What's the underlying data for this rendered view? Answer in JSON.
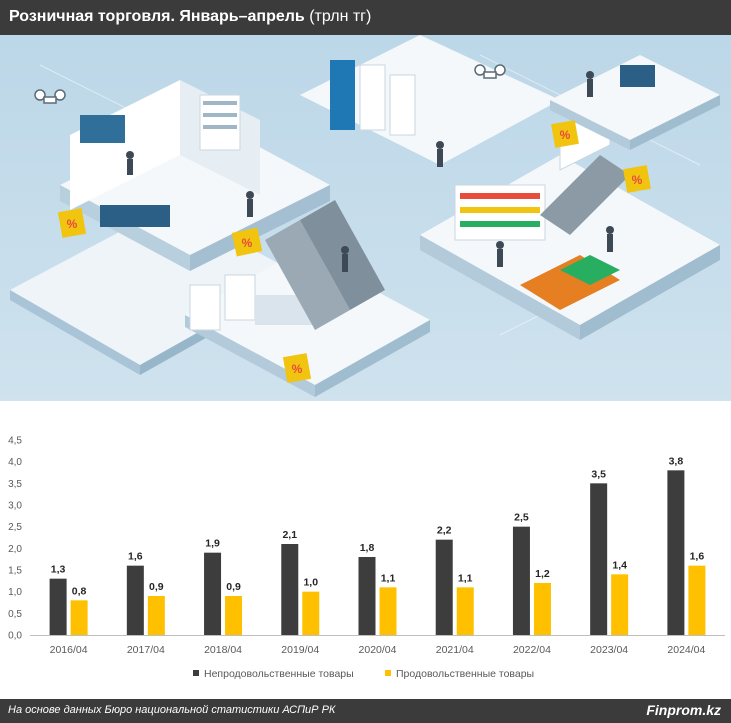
{
  "header": {
    "title_bold": "Розничная торговля. Январь–апрель",
    "title_unit": "(трлн тг)"
  },
  "illustration": {
    "description_icon": "shopping-mall-isometric-illustration"
  },
  "chart_data": {
    "type": "bar",
    "categories": [
      "2016/04",
      "2017/04",
      "2018/04",
      "2019/04",
      "2020/04",
      "2021/04",
      "2022/04",
      "2023/04",
      "2024/04"
    ],
    "series": [
      {
        "name": "Непродовольственные товары",
        "color": "#3d3d3d",
        "values": [
          1.3,
          1.6,
          1.9,
          2.1,
          1.8,
          2.2,
          2.5,
          3.5,
          3.8
        ],
        "labels": [
          "1,3",
          "1,6",
          "1,9",
          "2,1",
          "1,8",
          "2,2",
          "2,5",
          "3,5",
          "3,8"
        ]
      },
      {
        "name": "Продовольственные товары",
        "color": "#ffc000",
        "values": [
          0.8,
          0.9,
          0.9,
          1.0,
          1.1,
          1.1,
          1.2,
          1.4,
          1.6
        ],
        "labels": [
          "0,8",
          "0,9",
          "0,9",
          "1,0",
          "1,1",
          "1,1",
          "1,2",
          "1,4",
          "1,6"
        ]
      }
    ],
    "ylim": [
      0,
      4.5
    ],
    "yticks": [
      "0,0",
      "0,5",
      "1,0",
      "1,5",
      "2,0",
      "2,5",
      "3,0",
      "3,5",
      "4,0",
      "4,5"
    ],
    "legend_position": "bottom",
    "grid": false
  },
  "footer": {
    "source": "На основе данных Бюро национальной статистики АСПиР РК",
    "brand": "Finprom.kz"
  }
}
